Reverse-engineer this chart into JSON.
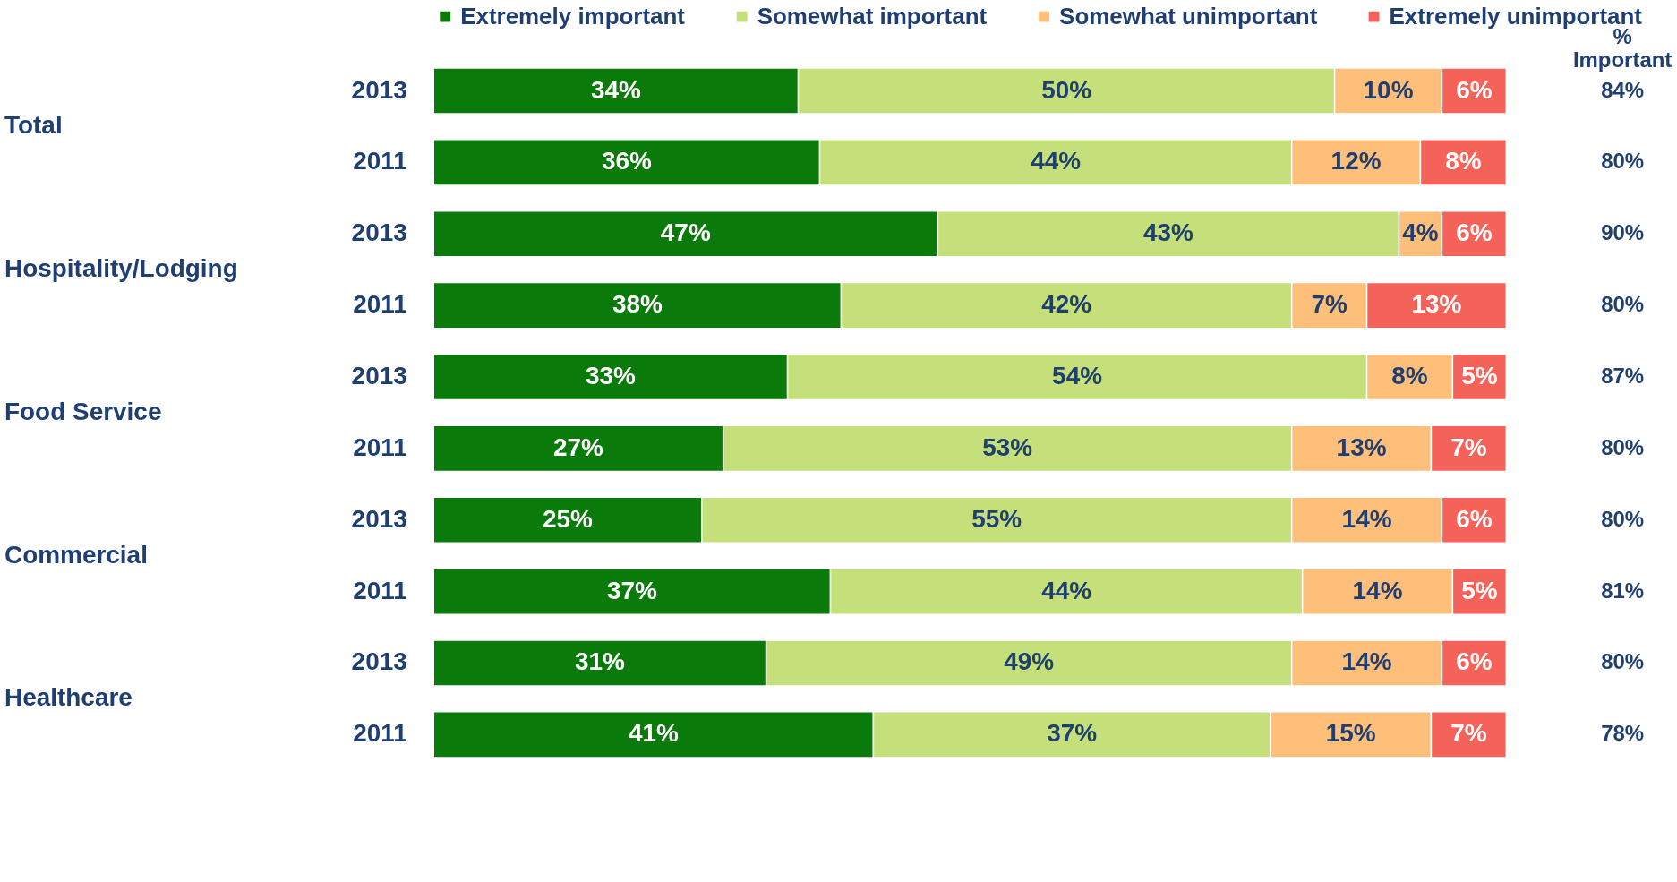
{
  "chart_data": {
    "type": "bar",
    "orientation": "horizontal",
    "stacked": true,
    "legend": "top",
    "categories": [
      "2013",
      "2011",
      "2013",
      "2011",
      "2013",
      "2011",
      "2013",
      "2011",
      "2013",
      "2011"
    ],
    "series": [
      {
        "name": "Extremely important",
        "color": "#0a7a0a",
        "values": [
          34,
          36,
          47,
          38,
          33,
          27,
          25,
          37,
          31,
          41
        ],
        "value_labels": [
          "34%",
          "36%",
          "47%",
          "38%",
          "33%",
          "27%",
          "25%",
          "37%",
          "31%",
          "41%"
        ]
      },
      {
        "name": "Somewhat important",
        "color": "#c5e07a",
        "values": [
          50,
          44,
          43,
          42,
          54,
          53,
          55,
          44,
          49,
          37
        ],
        "value_labels": [
          "50%",
          "44%",
          "43%",
          "42%",
          "54%",
          "53%",
          "55%",
          "44%",
          "49%",
          "37%"
        ]
      },
      {
        "name": "Somewhat unimportant",
        "color": "#fdbf7a",
        "values": [
          10,
          12,
          4,
          7,
          8,
          13,
          14,
          14,
          14,
          15
        ],
        "value_labels": [
          "10%",
          "12%",
          "4%",
          "7%",
          "8%",
          "13%",
          "14%",
          "14%",
          "14%",
          "15%"
        ]
      },
      {
        "name": "Extremely unimportant",
        "color": "#f4625a",
        "values": [
          6,
          8,
          6,
          13,
          5,
          7,
          6,
          5,
          6,
          7
        ],
        "value_labels": [
          "6%",
          "8%",
          "6%",
          "13%",
          "5%",
          "7%",
          "6%",
          "5%",
          "6%",
          "7%"
        ]
      }
    ],
    "annotations": [
      "Total",
      "Hospitality/Lodging",
      "Food Service",
      "Commercial",
      "Healthcare",
      "% Important",
      "84%",
      "80%",
      "90%",
      "80%",
      "87%",
      "80%",
      "80%",
      "81%",
      "80%",
      "78%"
    ]
  }
}
